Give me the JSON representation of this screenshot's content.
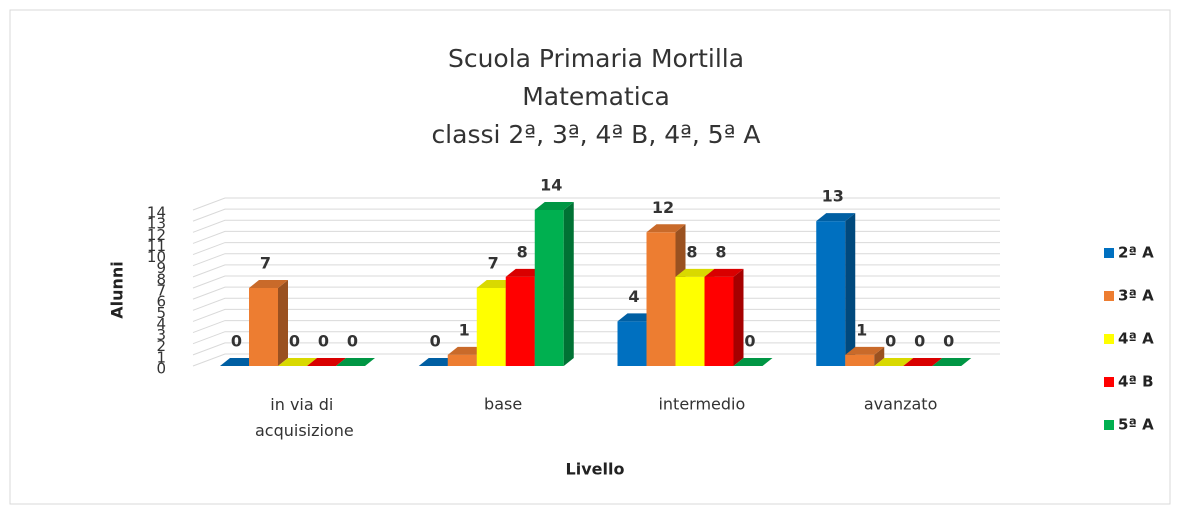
{
  "chart_data": {
    "type": "bar3d",
    "title": [
      "Scuola Primaria Mortilla",
      "Matematica",
      "classi 2ª, 3ª, 4ª B, 4ª, 5ª A"
    ],
    "x_label": "Livello",
    "y_label": "Alunni",
    "categories": [
      "in via di acquisizione",
      "base",
      "intermedio",
      "avanzato"
    ],
    "series": [
      {
        "name": "2ª A",
        "color": "#0070c0",
        "values": [
          0,
          0,
          4,
          13
        ]
      },
      {
        "name": "3ª A",
        "color": "#ed7d31",
        "values": [
          7,
          1,
          12,
          1
        ]
      },
      {
        "name": "4ª A",
        "color": "#ffff00",
        "values": [
          0,
          7,
          8,
          0
        ]
      },
      {
        "name": "4ª B",
        "color": "#ff0000",
        "values": [
          0,
          8,
          8,
          0
        ]
      },
      {
        "name": "5ª A",
        "color": "#00b050",
        "values": [
          0,
          14,
          0,
          0
        ]
      }
    ],
    "ylim": [
      0,
      14
    ],
    "yticks": [
      0,
      1,
      2,
      3,
      4,
      5,
      6,
      7,
      8,
      9,
      10,
      11,
      12,
      13,
      14
    ],
    "grid": true,
    "legend": "right"
  }
}
